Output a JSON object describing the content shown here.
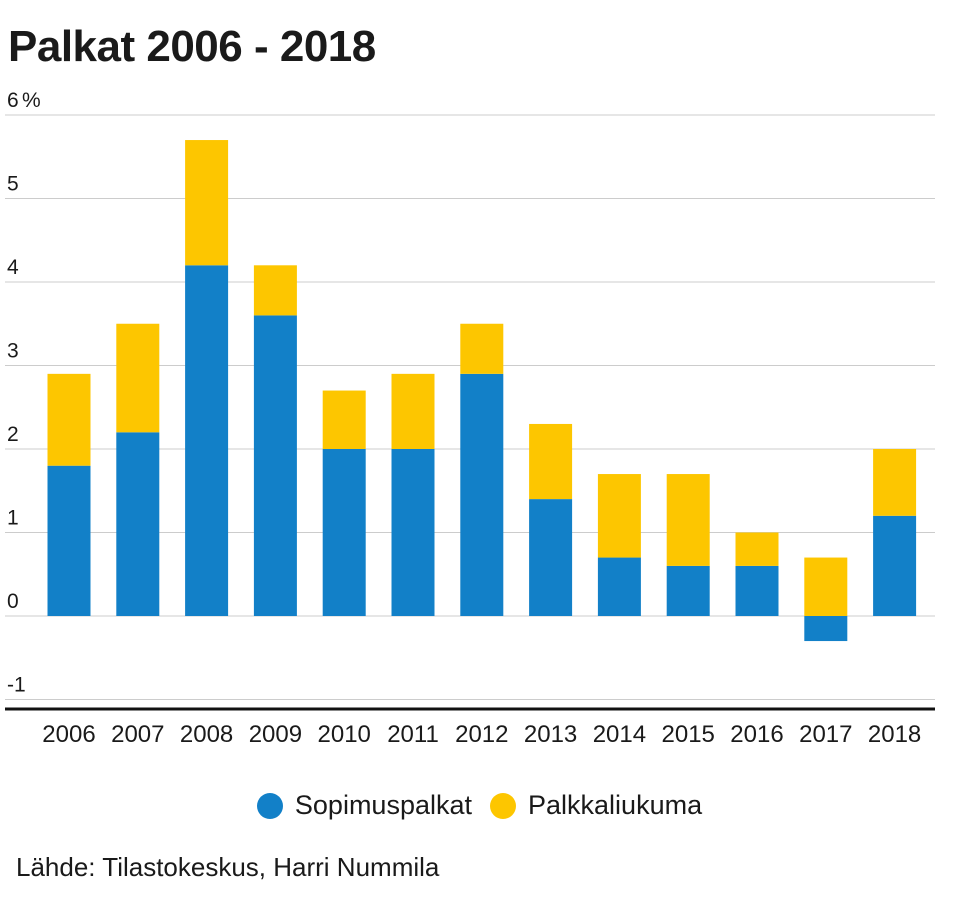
{
  "chart_data": {
    "type": "bar",
    "stacked": true,
    "title": "Palkat 2006 - 2018",
    "categories": [
      "2006",
      "2007",
      "2008",
      "2009",
      "2010",
      "2011",
      "2012",
      "2013",
      "2014",
      "2015",
      "2016",
      "2017",
      "2018"
    ],
    "series": [
      {
        "name": "Sopimuspalkat",
        "color": "#1280c8",
        "values": [
          1.8,
          2.2,
          4.2,
          3.6,
          2.0,
          2.0,
          2.9,
          1.4,
          0.7,
          0.6,
          0.6,
          -0.3,
          1.2
        ]
      },
      {
        "name": "Palkkaliukuma",
        "color": "#fdc600",
        "values": [
          1.1,
          1.3,
          1.5,
          0.6,
          0.7,
          0.9,
          0.6,
          0.9,
          1.0,
          1.1,
          0.4,
          0.7,
          0.8
        ]
      }
    ],
    "ylim": [
      -1.2,
      6
    ],
    "yticks": [
      {
        "value": 6,
        "label": "6"
      },
      {
        "value": 5,
        "label": "5"
      },
      {
        "value": 4,
        "label": "4"
      },
      {
        "value": 3,
        "label": "3"
      },
      {
        "value": 2,
        "label": "2"
      },
      {
        "value": 1,
        "label": "1"
      },
      {
        "value": 0,
        "label": "0"
      },
      {
        "value": -1,
        "label": "-1"
      }
    ],
    "yunit": "%",
    "xlabel": "",
    "ylabel": "",
    "grid": true,
    "legend_position": "bottom"
  },
  "source": "Lähde: Tilastokeskus, Harri Nummila"
}
